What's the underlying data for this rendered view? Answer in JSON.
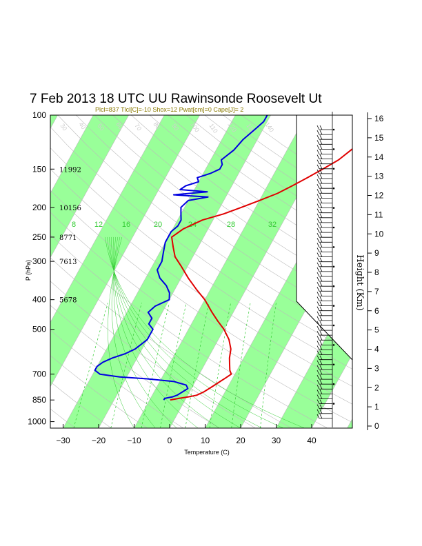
{
  "title": "7 Feb 2013 18 UTC UU Rawinsonde Roosevelt Ut",
  "subtitle": "Plcl=837 Tlcl[C]=-10 Shox=12 Pwat[cm]=0 Cape[J]= 2",
  "chart_data": {
    "type": "line",
    "xlabel": "Temperature (C)",
    "ylabel": "P (hPa)",
    "right_axis_label": "Height (Km)",
    "x_ticks": [
      "−30",
      "−20",
      "−10",
      "0",
      "10",
      "20",
      "30",
      "40"
    ],
    "y_ticks": [
      {
        "p": 100,
        "label": "100"
      },
      {
        "p": 150,
        "label": "150"
      },
      {
        "p": 200,
        "label": "200"
      },
      {
        "p": 250,
        "label": "250"
      },
      {
        "p": 300,
        "label": "300"
      },
      {
        "p": 400,
        "label": "400"
      },
      {
        "p": 500,
        "label": "500"
      },
      {
        "p": 700,
        "label": "700"
      },
      {
        "p": 850,
        "label": "850"
      },
      {
        "p": 1000,
        "label": "1000"
      }
    ],
    "height_ticks": [
      "0",
      "1",
      "2",
      "3",
      "4",
      "5",
      "6",
      "7",
      "8",
      "9",
      "10",
      "11",
      "12",
      "13",
      "14",
      "15",
      "16"
    ],
    "height_annotations": [
      {
        "p": 150,
        "label": "11992"
      },
      {
        "p": 200,
        "label": "10156"
      },
      {
        "p": 250,
        "label": "8771"
      },
      {
        "p": 300,
        "label": "7613"
      },
      {
        "p": 400,
        "label": "5678"
      }
    ],
    "mixing_ratio_labels": [
      "8",
      "12",
      "16",
      "20",
      "24",
      "28",
      "32"
    ],
    "isotherm_labels": [
      "20",
      "30",
      "40",
      "50",
      "60",
      "70",
      "80",
      "90",
      "100",
      "110",
      "120",
      "130",
      "140",
      "150",
      "160",
      "170"
    ],
    "colors": {
      "temperature": "#e00000",
      "dewpoint": "#0000e0",
      "band": "#99ff99",
      "mixing_ratio": "#33cc33",
      "grid": "#bbbbbb"
    },
    "series": [
      {
        "name": "Temperature",
        "points": [
          [
            850,
            -4.2
          ],
          [
            840,
            -2
          ],
          [
            830,
            0.5
          ],
          [
            820,
            2.5
          ],
          [
            800,
            4
          ],
          [
            780,
            5
          ],
          [
            760,
            6
          ],
          [
            740,
            7
          ],
          [
            720,
            8
          ],
          [
            700,
            9
          ],
          [
            680,
            8
          ],
          [
            650,
            7
          ],
          [
            620,
            6
          ],
          [
            580,
            5
          ],
          [
            540,
            3
          ],
          [
            500,
            0
          ],
          [
            470,
            -3
          ],
          [
            440,
            -6
          ],
          [
            400,
            -10
          ],
          [
            370,
            -14
          ],
          [
            340,
            -18
          ],
          [
            310,
            -22
          ],
          [
            290,
            -25
          ],
          [
            270,
            -27
          ],
          [
            250,
            -29
          ],
          [
            235,
            -27
          ],
          [
            220,
            -23
          ],
          [
            210,
            -18
          ],
          [
            200,
            -14
          ],
          [
            190,
            -10
          ],
          [
            180,
            -6
          ],
          [
            170,
            -3
          ],
          [
            160,
            0
          ],
          [
            150,
            3
          ],
          [
            140,
            6
          ],
          [
            130,
            8
          ],
          [
            120,
            10
          ],
          [
            112,
            12
          ],
          [
            105,
            13
          ],
          [
            100,
            13
          ]
        ]
      },
      {
        "name": "Dewpoint",
        "points": [
          [
            850,
            -6
          ],
          [
            840,
            -6
          ],
          [
            830,
            -4
          ],
          [
            820,
            -3
          ],
          [
            800,
            -2
          ],
          [
            780,
            -1
          ],
          [
            760,
            -2
          ],
          [
            740,
            -6
          ],
          [
            725,
            -14
          ],
          [
            715,
            -22
          ],
          [
            700,
            -28
          ],
          [
            680,
            -30
          ],
          [
            660,
            -30
          ],
          [
            640,
            -29
          ],
          [
            620,
            -27
          ],
          [
            600,
            -24
          ],
          [
            580,
            -22
          ],
          [
            560,
            -21
          ],
          [
            540,
            -20
          ],
          [
            520,
            -20
          ],
          [
            500,
            -20
          ],
          [
            480,
            -22
          ],
          [
            460,
            -22
          ],
          [
            440,
            -24
          ],
          [
            420,
            -23
          ],
          [
            400,
            -20
          ],
          [
            380,
            -21
          ],
          [
            360,
            -23
          ],
          [
            340,
            -26
          ],
          [
            320,
            -28
          ],
          [
            300,
            -28
          ],
          [
            280,
            -29
          ],
          [
            260,
            -30
          ],
          [
            240,
            -30
          ],
          [
            230,
            -29
          ],
          [
            220,
            -29
          ],
          [
            210,
            -30
          ],
          [
            200,
            -31
          ],
          [
            190,
            -30
          ],
          [
            185,
            -25
          ],
          [
            182,
            -35
          ],
          [
            178,
            -26
          ],
          [
            175,
            -34
          ],
          [
            170,
            -33
          ],
          [
            165,
            -30
          ],
          [
            160,
            -31
          ],
          [
            155,
            -28
          ],
          [
            150,
            -26
          ],
          [
            145,
            -26
          ],
          [
            140,
            -27
          ],
          [
            130,
            -25
          ],
          [
            120,
            -24
          ],
          [
            110,
            -22
          ],
          [
            105,
            -21
          ],
          [
            100,
            -21
          ]
        ]
      }
    ]
  }
}
